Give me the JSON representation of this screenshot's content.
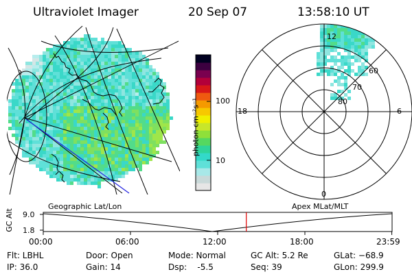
{
  "header": {
    "instrument": "Ultraviolet Imager",
    "date": "20 Sep 07",
    "time": "13:58:10 UT"
  },
  "colorbar": {
    "unit_label": "photon cm⁻²s⁻¹",
    "ticks": [
      {
        "label": "100",
        "value": 100
      },
      {
        "label": "10",
        "value": 10
      }
    ],
    "colors": [
      "#e6e6e6",
      "#c9d9d9",
      "#a8e8e8",
      "#5fe0d8",
      "#33d9c9",
      "#2fd49a",
      "#55d860",
      "#8fe03a",
      "#c8e62a",
      "#f0f000",
      "#f7c800",
      "#f59a00",
      "#ef5a10",
      "#d81818",
      "#b3003a",
      "#7a004f",
      "#3c0040",
      "#000020"
    ]
  },
  "left_panel": {
    "caption": "Geographic Lat/Lon"
  },
  "right_panel": {
    "caption": "Apex MLat/MLT",
    "mlt_labels": {
      "top": "12",
      "left": "18",
      "right": "6",
      "bottom": "0"
    },
    "mlat_labels": [
      "60",
      "70",
      "80"
    ]
  },
  "timeline": {
    "ylabel": "GC Alt",
    "y_ticks": [
      "9.0",
      "1.8"
    ],
    "x_ticks": [
      "00:00",
      "06:00",
      "12:00",
      "18:00",
      "23:59"
    ],
    "x_tick_hours": [
      0,
      6,
      12,
      18,
      23.983
    ],
    "cursor_hour": 13.97,
    "cursor_color": "#e00000"
  },
  "status": {
    "flt": "Flt: LBHL",
    "ip": "IP: 36.0",
    "door": "Door: Open",
    "gain": "Gain: 14",
    "mode": "Mode: Normal",
    "dsp": "Dsp:    -5.5",
    "gc_alt": "GC Alt: 5.2 Re",
    "seq": "Seq: 39",
    "glat": "GLat: −68.9",
    "glon": "GLon: 299.9"
  }
}
